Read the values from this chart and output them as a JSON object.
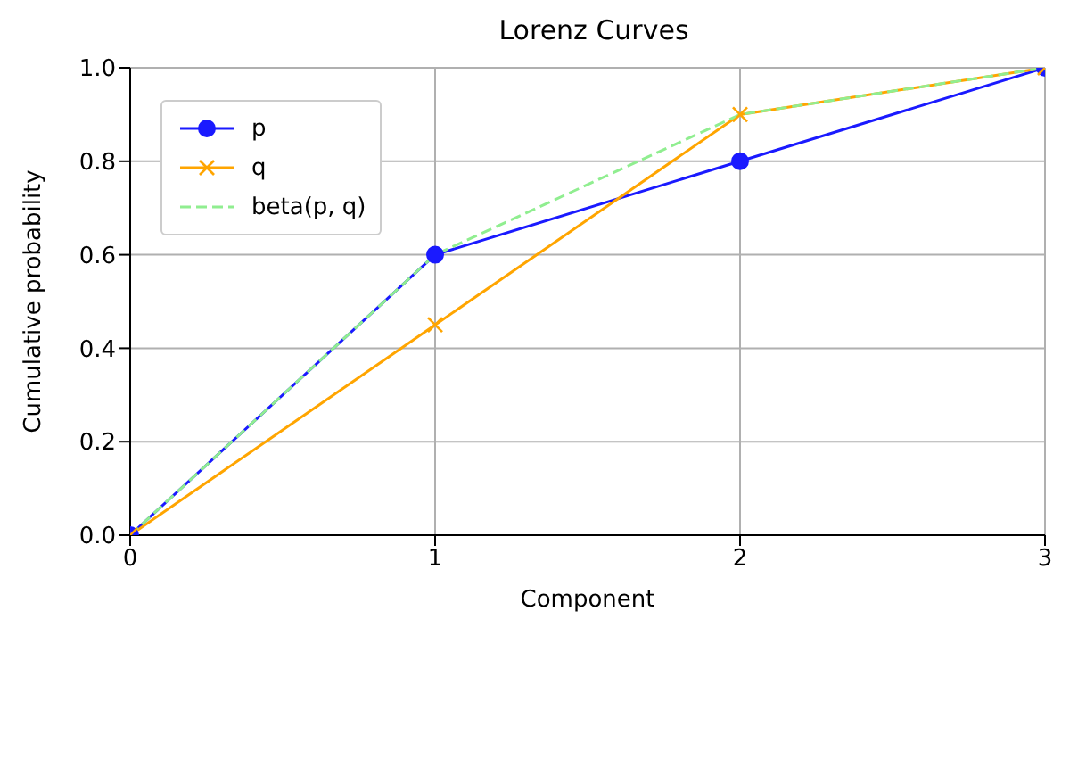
{
  "chart_data": {
    "type": "line",
    "title": "Lorenz Curves",
    "xlabel": "Component",
    "ylabel": "Cumulative probability",
    "x": [
      0,
      1,
      2,
      3
    ],
    "series": [
      {
        "name": "p",
        "color": "#1a1aff",
        "values": [
          0,
          0.6,
          0.8,
          1.0
        ],
        "marker": "circle",
        "line_style": "solid"
      },
      {
        "name": "q",
        "color": "#ffa500",
        "values": [
          0,
          0.45,
          0.9,
          1.0
        ],
        "marker": "cross",
        "line_style": "solid"
      },
      {
        "name": "beta(p, q)",
        "color": "#90ee90",
        "values": [
          0,
          0.6,
          0.9,
          1.0
        ],
        "line_style": "dashed"
      }
    ],
    "xlim": [
      0,
      3
    ],
    "xticks": [
      0,
      1,
      2,
      3
    ],
    "ylim": [
      0,
      1
    ],
    "yticks": [
      {
        "value": 0,
        "label": "0.0"
      },
      {
        "value": 0.2,
        "label": "0.2"
      },
      {
        "value": 0.4,
        "label": "0.4"
      },
      {
        "value": 0.6,
        "label": "0.6"
      },
      {
        "value": 0.8,
        "label": "0.8"
      },
      {
        "value": 1,
        "label": "1.0"
      }
    ],
    "grid": true,
    "legend": "top left"
  }
}
